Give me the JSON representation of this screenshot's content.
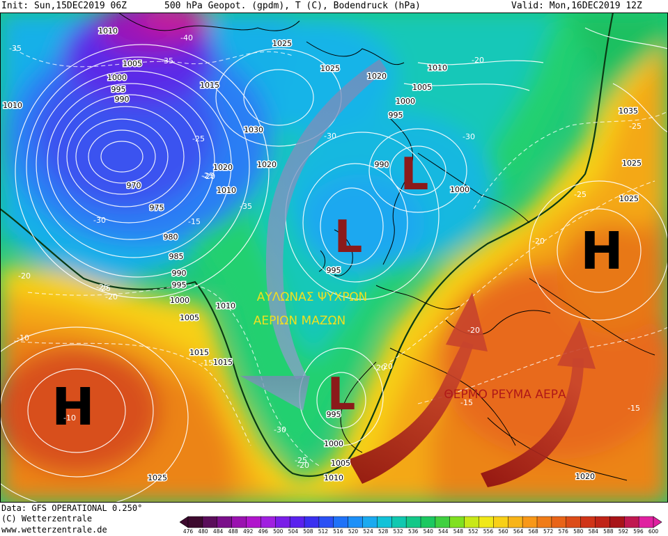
{
  "header": {
    "init": "Init: Sun,15DEC2019 06Z",
    "product": "500 hPa Geopot. (gpdm), T (C), Bodendruck (hPa)",
    "valid": "Valid: Mon,16DEC2019 12Z"
  },
  "footer": {
    "data_source": "Data: GFS OPERATIONAL 0.250°",
    "copyright": "(C) Wetterzentrale",
    "website": "www.wetterzentrale.de"
  },
  "colorbar": {
    "ticks": [
      "476",
      "480",
      "484",
      "488",
      "492",
      "496",
      "500",
      "504",
      "508",
      "512",
      "516",
      "520",
      "524",
      "528",
      "532",
      "536",
      "540",
      "544",
      "548",
      "552",
      "556",
      "560",
      "564",
      "568",
      "572",
      "576",
      "580",
      "584",
      "588",
      "592",
      "596",
      "600"
    ],
    "colors": [
      "#3d0a2e",
      "#5a0d5a",
      "#7a0f8a",
      "#9a12b0",
      "#b015cc",
      "#a020e0",
      "#7a1ee8",
      "#5a22ee",
      "#3a30f0",
      "#2a50f5",
      "#1f72f8",
      "#1c90f8",
      "#1aaaf0",
      "#12c2d8",
      "#10c8b0",
      "#14c888",
      "#1cc860",
      "#40d040",
      "#80e020",
      "#c8e818",
      "#f0e818",
      "#f8d018",
      "#f8b418",
      "#f89818",
      "#f07c18",
      "#e86418",
      "#dc4c18",
      "#d03418",
      "#c02418",
      "#a81418",
      "#c01850",
      "#e020a0"
    ]
  },
  "annotations": {
    "trough_label_line1": "ΑΥΛΩΝΑΣ ΨΥΧΡΩΝ",
    "trough_label_line2": "ΑΕΡΙΩΝ ΜΑΖΩΝ",
    "warm_flow_label": "ΘΕΡΜΟ ΡΕΥΜΑ ΑΕΡΑ",
    "low_letter": "L",
    "high_letter": "H"
  },
  "isobar_labels": [
    "1010",
    "1005",
    "1000",
    "995",
    "990",
    "970",
    "975",
    "980",
    "985",
    "990",
    "995",
    "1000",
    "1005",
    "1015",
    "1030",
    "1020",
    "1010",
    "1025",
    "1025",
    "1020",
    "1010",
    "1005",
    "1000",
    "995",
    "990",
    "1000",
    "995",
    "1010",
    "1035",
    "1025",
    "1025",
    "1015",
    "995",
    "1000",
    "1005",
    "1010",
    "1025",
    "1020",
    "1015",
    "1010",
    "1020"
  ],
  "temperature_labels": [
    "-35",
    "-40",
    "-35",
    "-25",
    "-25",
    "-20",
    "-35",
    "-30",
    "-25",
    "-20",
    "-15",
    "-30",
    "-30",
    "-20",
    "-25",
    "-20",
    "-25",
    "-20",
    "-25",
    "-20",
    "-10",
    "-15",
    "-20",
    "-10",
    "-30",
    "-25",
    "-20",
    "-15",
    "-15",
    "-20"
  ],
  "colors": {
    "low_letter": "#8b1a1a",
    "high_letter": "#000000",
    "trough_label": "#f0e020",
    "warm_flow_label": "#b01818"
  }
}
